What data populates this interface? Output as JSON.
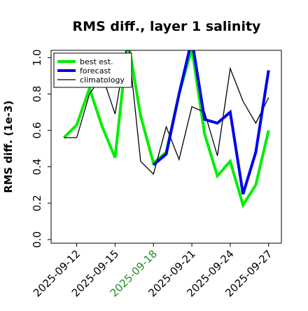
{
  "chart_data": {
    "type": "line",
    "title": "RMS diff., layer 1 salinity",
    "xlabel": "",
    "ylabel": "RMS diff. (1e-3)",
    "ylim": [
      -0.02,
      1.04
    ],
    "yticks": [
      "0.0",
      "0.2",
      "0.4",
      "0.6",
      "0.8",
      "1.0"
    ],
    "ytick_values": [
      0,
      0.2,
      0.4,
      0.6,
      0.8,
      1.0
    ],
    "xlim": [
      "2025-09-10",
      "2025-09-28"
    ],
    "xticks": [
      "2025-09-12",
      "2025-09-15",
      "2025-09-18",
      "2025-09-21",
      "2025-09-24",
      "2025-09-27"
    ],
    "highlight_tick": "2025-09-18",
    "highlight_color": "#228B22",
    "grid": false,
    "legend_position": "top-left",
    "series": [
      {
        "name": "best est.",
        "color": "#00ee00",
        "width": 4,
        "x": [
          "2025-09-11",
          "2025-09-12",
          "2025-09-13",
          "2025-09-14",
          "2025-09-15",
          "2025-09-16",
          "2025-09-17",
          "2025-09-18",
          "2025-09-19",
          "2025-09-20",
          "2025-09-21",
          "2025-09-22",
          "2025-09-23",
          "2025-09-24",
          "2025-09-25",
          "2025-09-26",
          "2025-09-27"
        ],
        "y": [
          0.56,
          0.63,
          0.83,
          0.62,
          0.45,
          1.1,
          0.68,
          0.42,
          0.48,
          0.8,
          1.05,
          0.58,
          0.35,
          0.43,
          0.19,
          0.3,
          0.6
        ]
      },
      {
        "name": "forecast",
        "color": "#0000ee",
        "width": 4,
        "x": [
          "2025-09-18",
          "2025-09-19",
          "2025-09-20",
          "2025-09-21",
          "2025-09-22",
          "2025-09-23",
          "2025-09-24",
          "2025-09-25",
          "2025-09-26",
          "2025-09-27"
        ],
        "y": [
          0.41,
          0.47,
          0.8,
          1.1,
          0.66,
          0.64,
          0.7,
          0.25,
          0.48,
          0.93
        ]
      },
      {
        "name": "climatology",
        "color": "#000000",
        "width": 1.3,
        "x": [
          "2025-09-11",
          "2025-09-12",
          "2025-09-13",
          "2025-09-14",
          "2025-09-15",
          "2025-09-16",
          "2025-09-17",
          "2025-09-18",
          "2025-09-19",
          "2025-09-20",
          "2025-09-21",
          "2025-09-22",
          "2025-09-23",
          "2025-09-24",
          "2025-09-25",
          "2025-09-26",
          "2025-09-27"
        ],
        "y": [
          0.56,
          0.56,
          0.8,
          0.9,
          0.69,
          1.1,
          0.43,
          0.36,
          0.62,
          0.44,
          0.73,
          0.7,
          0.46,
          0.94,
          0.76,
          0.64,
          0.78
        ]
      }
    ]
  }
}
